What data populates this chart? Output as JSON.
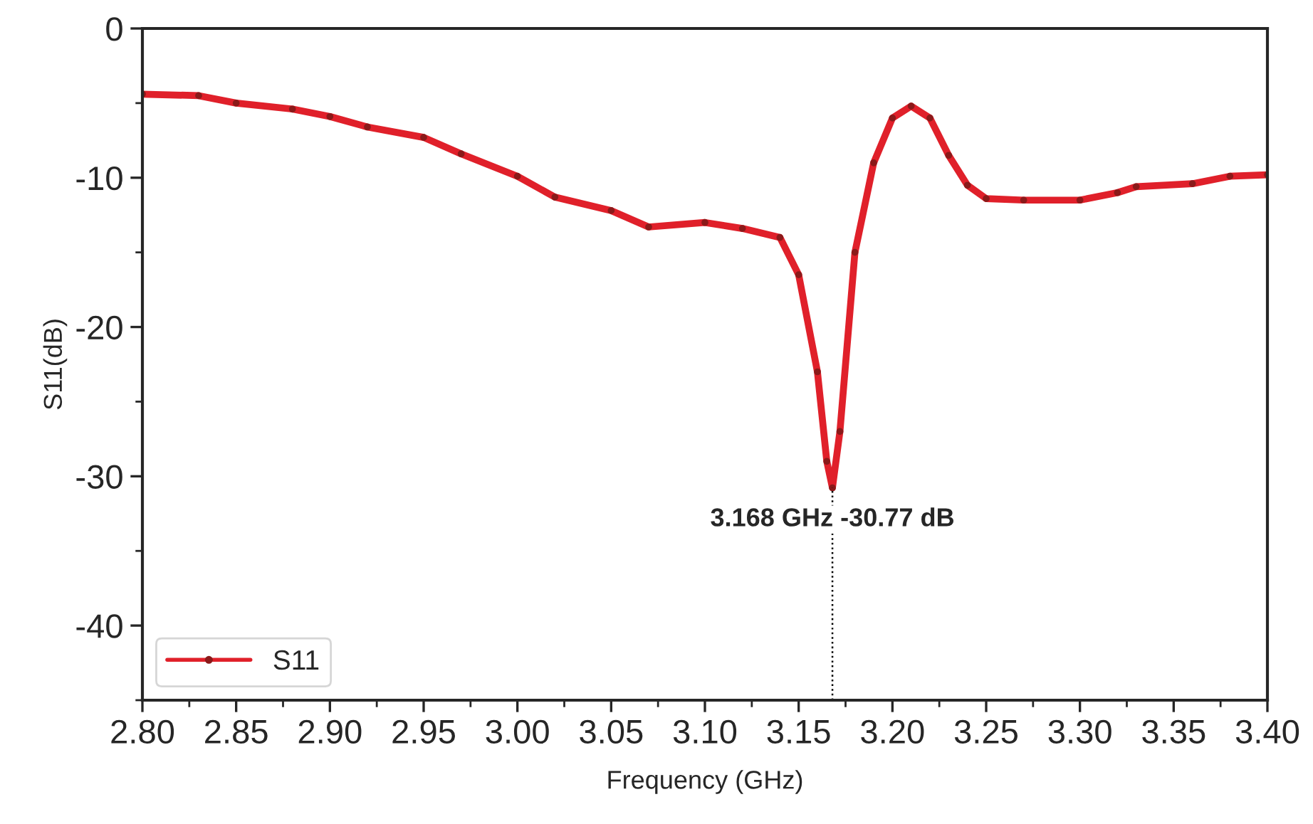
{
  "chart_data": {
    "type": "line",
    "xlabel": "Frequency (GHz)",
    "ylabel": "S11(dB)",
    "x": [
      2.8,
      2.83,
      2.85,
      2.88,
      2.9,
      2.92,
      2.95,
      2.97,
      3.0,
      3.02,
      3.05,
      3.07,
      3.1,
      3.12,
      3.14,
      3.15,
      3.16,
      3.165,
      3.168,
      3.172,
      3.18,
      3.19,
      3.2,
      3.21,
      3.22,
      3.23,
      3.24,
      3.25,
      3.27,
      3.3,
      3.32,
      3.33,
      3.36,
      3.38,
      3.4
    ],
    "series": [
      {
        "name": "S11",
        "color": "#e0202a",
        "values": [
          -4.4,
          -4.5,
          -5.0,
          -5.4,
          -5.9,
          -6.6,
          -7.3,
          -8.4,
          -9.9,
          -11.3,
          -12.2,
          -13.3,
          -13.0,
          -13.4,
          -14.0,
          -16.5,
          -23,
          -29,
          -30.77,
          -27,
          -15,
          -9,
          -6,
          -5.2,
          -6,
          -8.5,
          -10.5,
          -11.4,
          -11.5,
          -11.5,
          -11.0,
          -10.6,
          -10.4,
          -9.9,
          -9.8
        ]
      }
    ],
    "xlim": [
      2.8,
      3.4
    ],
    "ylim": [
      -45,
      0
    ],
    "xticks": [
      {
        "value": 2.8,
        "label": "2.80"
      },
      {
        "value": 2.85,
        "label": "2.85"
      },
      {
        "value": 2.9,
        "label": "2.90"
      },
      {
        "value": 2.95,
        "label": "2.95"
      },
      {
        "value": 3.0,
        "label": "3.00"
      },
      {
        "value": 3.05,
        "label": "3.05"
      },
      {
        "value": 3.1,
        "label": "3.10"
      },
      {
        "value": 3.15,
        "label": "3.15"
      },
      {
        "value": 3.2,
        "label": "3.20"
      },
      {
        "value": 3.25,
        "label": "3.25"
      },
      {
        "value": 3.3,
        "label": "3.30"
      },
      {
        "value": 3.35,
        "label": "3.35"
      },
      {
        "value": 3.4,
        "label": "3.40"
      }
    ],
    "yticks": [
      0,
      -10,
      -20,
      -30,
      -40
    ],
    "annotations": [
      {
        "text": "3.168 GHz -30.77 dB",
        "x": 3.168,
        "y": -30.77
      }
    ],
    "ref_lines": [
      {
        "axis": "x",
        "value": 3.168,
        "line_style": "dotted",
        "color": "#000000"
      }
    ],
    "legend": "bottom left",
    "marker": "circle",
    "line_style": "solid",
    "grid": false
  }
}
